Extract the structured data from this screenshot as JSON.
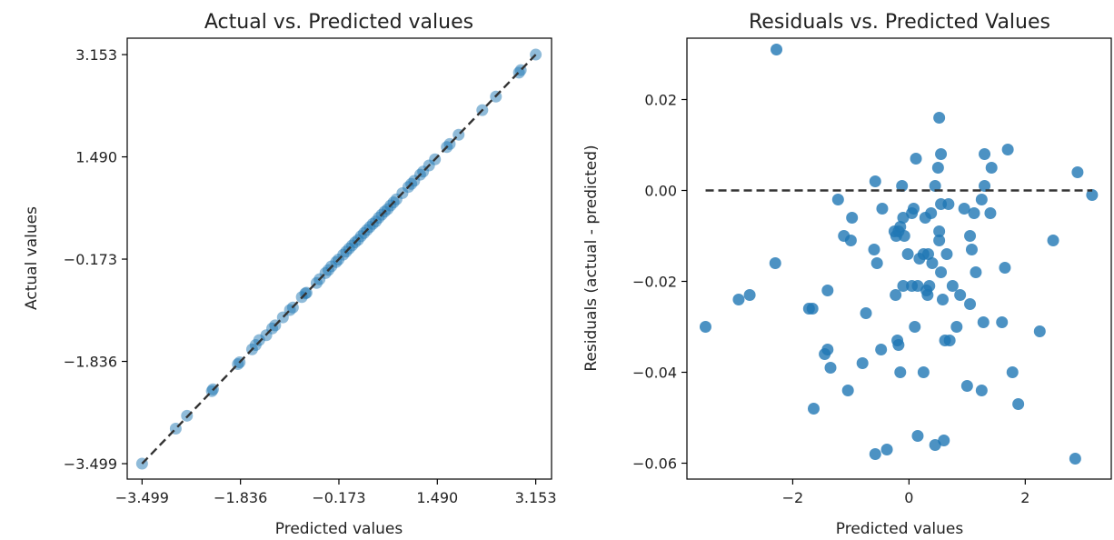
{
  "colors": {
    "marker": "#1f77b4",
    "reference_line": "#333333",
    "axis": "#000000"
  },
  "chart_data": [
    {
      "type": "scatter",
      "title": "Actual vs. Predicted values",
      "xlabel": "Predicted values",
      "ylabel": "Actual values",
      "xlim": [
        -3.75,
        3.42
      ],
      "ylim": [
        -3.75,
        3.42
      ],
      "xticks": [
        -3.499,
        -1.836,
        -0.173,
        1.49,
        3.153
      ],
      "yticks": [
        -3.499,
        -1.836,
        -0.173,
        1.49,
        3.153
      ],
      "tick_labels": [
        "−3.499",
        "−1.836",
        "−0.173",
        "1.490",
        "3.153"
      ],
      "marker_alpha": 0.5,
      "reference_line": {
        "style": "dashed",
        "from": [
          -3.499,
          -3.499
        ],
        "to": [
          3.153,
          3.153
        ]
      },
      "points": [
        [
          -3.499,
          -3.499
        ],
        [
          -2.93,
          -2.93
        ],
        [
          -2.74,
          -2.72
        ],
        [
          -2.32,
          -2.32
        ],
        [
          -2.3,
          -2.29
        ],
        [
          -1.88,
          -1.88
        ],
        [
          -1.85,
          -1.85
        ],
        [
          -1.64,
          -1.64
        ],
        [
          -1.58,
          -1.57
        ],
        [
          -1.52,
          -1.49
        ],
        [
          -1.4,
          -1.41
        ],
        [
          -1.3,
          -1.3
        ],
        [
          -1.25,
          -1.25
        ],
        [
          -1.12,
          -1.12
        ],
        [
          -1.0,
          -1.0
        ],
        [
          -0.95,
          -0.96
        ],
        [
          -0.8,
          -0.79
        ],
        [
          -0.74,
          -0.73
        ],
        [
          -0.72,
          -0.72
        ],
        [
          -0.55,
          -0.56
        ],
        [
          -0.5,
          -0.5
        ],
        [
          -0.4,
          -0.4
        ],
        [
          -0.35,
          -0.35
        ],
        [
          -0.3,
          -0.29
        ],
        [
          -0.22,
          -0.22
        ],
        [
          -0.18,
          -0.18
        ],
        [
          -0.1,
          -0.1
        ],
        [
          -0.05,
          -0.05
        ],
        [
          0.0,
          0.0
        ],
        [
          0.05,
          0.05
        ],
        [
          0.1,
          0.1
        ],
        [
          0.15,
          0.14
        ],
        [
          0.2,
          0.2
        ],
        [
          0.25,
          0.25
        ],
        [
          0.3,
          0.3
        ],
        [
          0.35,
          0.35
        ],
        [
          0.4,
          0.4
        ],
        [
          0.45,
          0.44
        ],
        [
          0.5,
          0.5
        ],
        [
          0.55,
          0.55
        ],
        [
          0.6,
          0.6
        ],
        [
          0.65,
          0.64
        ],
        [
          0.7,
          0.7
        ],
        [
          0.75,
          0.75
        ],
        [
          0.8,
          0.8
        ],
        [
          0.9,
          0.9
        ],
        [
          1.0,
          1.0
        ],
        [
          1.05,
          1.05
        ],
        [
          1.1,
          1.1
        ],
        [
          1.2,
          1.2
        ],
        [
          1.25,
          1.25
        ],
        [
          1.35,
          1.35
        ],
        [
          1.45,
          1.45
        ],
        [
          1.65,
          1.65
        ],
        [
          1.7,
          1.7
        ],
        [
          1.85,
          1.85
        ],
        [
          2.25,
          2.25
        ],
        [
          2.48,
          2.47
        ],
        [
          2.87,
          2.86
        ],
        [
          2.9,
          2.9
        ],
        [
          3.153,
          3.153
        ]
      ]
    },
    {
      "type": "scatter",
      "title": "Residuals vs. Predicted Values",
      "xlabel": "Predicted values",
      "ylabel": "Residuals (actual - predicted)",
      "xlim": [
        -3.82,
        3.48
      ],
      "ylim": [
        -0.0635,
        0.0335
      ],
      "xticks": [
        -2,
        0,
        2
      ],
      "xtick_labels": [
        "−2",
        "0",
        "2"
      ],
      "yticks": [
        0.02,
        0.0,
        -0.02,
        -0.04,
        -0.06
      ],
      "ytick_labels": [
        "0.02",
        "0.00",
        "−0.02",
        "−0.04",
        "−0.06"
      ],
      "marker_alpha": 0.8,
      "reference_line": {
        "style": "dashed",
        "from": [
          -3.499,
          0.0
        ],
        "to": [
          3.153,
          0.0
        ]
      },
      "points": [
        [
          -2.28,
          0.031
        ],
        [
          -3.5,
          -0.03
        ],
        [
          -2.93,
          -0.024
        ],
        [
          -2.74,
          -0.023
        ],
        [
          -2.3,
          -0.016
        ],
        [
          -1.72,
          -0.026
        ],
        [
          -1.66,
          -0.026
        ],
        [
          -1.64,
          -0.048
        ],
        [
          -1.4,
          -0.022
        ],
        [
          -1.4,
          -0.035
        ],
        [
          -1.45,
          -0.036
        ],
        [
          -1.35,
          -0.039
        ],
        [
          -1.22,
          -0.002
        ],
        [
          -1.12,
          -0.01
        ],
        [
          -1.05,
          -0.044
        ],
        [
          -1.0,
          -0.011
        ],
        [
          -0.98,
          -0.006
        ],
        [
          -0.8,
          -0.038
        ],
        [
          -0.74,
          -0.027
        ],
        [
          -0.6,
          -0.013
        ],
        [
          -0.58,
          -0.058
        ],
        [
          -0.58,
          0.002
        ],
        [
          -0.55,
          -0.016
        ],
        [
          -0.48,
          -0.035
        ],
        [
          -0.46,
          -0.004
        ],
        [
          -0.38,
          -0.057
        ],
        [
          -0.25,
          -0.009
        ],
        [
          -0.23,
          -0.023
        ],
        [
          -0.2,
          -0.033
        ],
        [
          -0.18,
          -0.034
        ],
        [
          -0.15,
          -0.008
        ],
        [
          -0.1,
          -0.006
        ],
        [
          -0.22,
          -0.01
        ],
        [
          -0.18,
          -0.009
        ],
        [
          -0.15,
          -0.04
        ],
        [
          -0.12,
          0.001
        ],
        [
          -0.1,
          -0.021
        ],
        [
          -0.08,
          -0.01
        ],
        [
          -0.02,
          -0.014
        ],
        [
          0.05,
          -0.005
        ],
        [
          0.05,
          -0.021
        ],
        [
          0.08,
          -0.004
        ],
        [
          0.1,
          -0.03
        ],
        [
          0.12,
          0.007
        ],
        [
          0.15,
          -0.021
        ],
        [
          0.15,
          -0.054
        ],
        [
          0.18,
          -0.015
        ],
        [
          0.25,
          -0.04
        ],
        [
          0.25,
          -0.014
        ],
        [
          0.28,
          -0.006
        ],
        [
          0.3,
          -0.022
        ],
        [
          0.32,
          -0.023
        ],
        [
          0.33,
          -0.014
        ],
        [
          0.35,
          -0.021
        ],
        [
          0.38,
          -0.005
        ],
        [
          0.4,
          -0.016
        ],
        [
          0.45,
          0.001
        ],
        [
          0.45,
          -0.056
        ],
        [
          0.5,
          0.005
        ],
        [
          0.52,
          -0.011
        ],
        [
          0.52,
          0.016
        ],
        [
          0.52,
          -0.009
        ],
        [
          0.55,
          -0.003
        ],
        [
          0.55,
          0.008
        ],
        [
          0.55,
          -0.018
        ],
        [
          0.58,
          -0.024
        ],
        [
          0.6,
          -0.055
        ],
        [
          0.62,
          -0.033
        ],
        [
          0.65,
          -0.014
        ],
        [
          0.68,
          -0.003
        ],
        [
          0.7,
          -0.033
        ],
        [
          0.75,
          -0.021
        ],
        [
          0.82,
          -0.03
        ],
        [
          0.88,
          -0.023
        ],
        [
          0.95,
          -0.004
        ],
        [
          1.0,
          -0.043
        ],
        [
          1.05,
          -0.025
        ],
        [
          1.05,
          -0.01
        ],
        [
          1.08,
          -0.013
        ],
        [
          1.12,
          -0.005
        ],
        [
          1.15,
          -0.018
        ],
        [
          1.25,
          -0.044
        ],
        [
          1.25,
          -0.002
        ],
        [
          1.28,
          -0.029
        ],
        [
          1.3,
          0.008
        ],
        [
          1.3,
          0.001
        ],
        [
          1.4,
          -0.005
        ],
        [
          1.42,
          0.005
        ],
        [
          1.6,
          -0.029
        ],
        [
          1.65,
          -0.017
        ],
        [
          1.7,
          0.009
        ],
        [
          1.78,
          -0.04
        ],
        [
          1.88,
          -0.047
        ],
        [
          2.25,
          -0.031
        ],
        [
          2.48,
          -0.011
        ],
        [
          2.86,
          -0.059
        ],
        [
          2.9,
          0.004
        ],
        [
          3.15,
          -0.001
        ]
      ]
    }
  ]
}
